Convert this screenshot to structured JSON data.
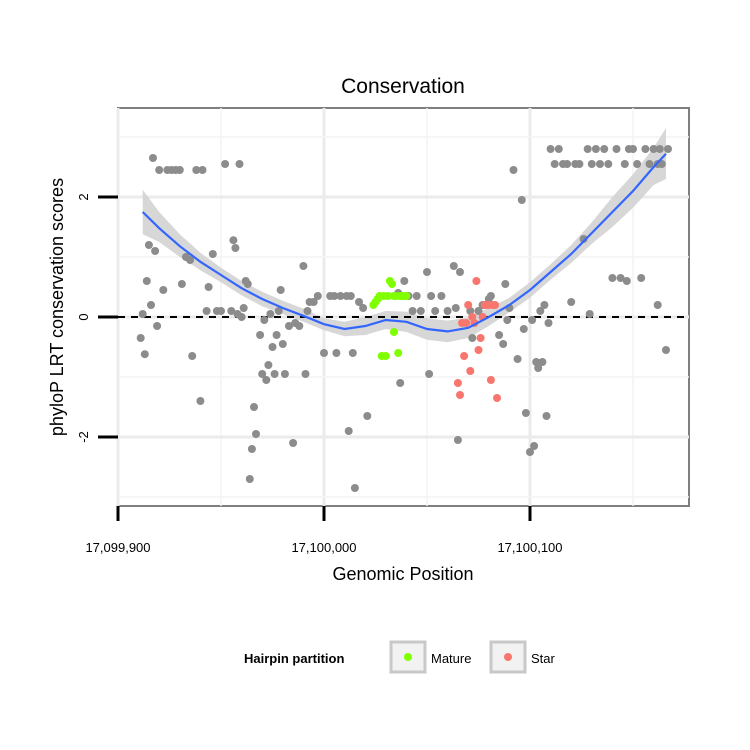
{
  "chart_data": {
    "type": "scatter",
    "title": "Conservation",
    "xlabel": "Genomic Position",
    "ylabel": "phyloP LRT conservation scores",
    "xlim": [
      17099890,
      17100170
    ],
    "ylim": [
      -3.2,
      3.5
    ],
    "x_ticks": [
      17099900,
      17100000,
      17100100
    ],
    "x_tick_labels": [
      "17,099,900",
      "17,100,000",
      "17,100,100"
    ],
    "y_ticks": [
      -2,
      0,
      2
    ],
    "y_tick_labels": [
      "-2",
      "0",
      "2"
    ],
    "grid": true,
    "reference_line": {
      "y": 0,
      "style": "dashed"
    },
    "legend": {
      "title": "Hairpin partition",
      "placement": "bottom",
      "entries": [
        {
          "label": "Mature",
          "color": "#7FFF00"
        },
        {
          "label": "Star",
          "color": "#F8766D"
        }
      ]
    },
    "colors": {
      "background_points": "#8C8C8C",
      "mature": "#7FFF00",
      "star": "#F8766D",
      "smooth_line": "#3366FF",
      "confidence_band": "#D3D3D3"
    },
    "series": [
      {
        "group": "background",
        "points": [
          [
            17099911,
            -0.35
          ],
          [
            17099912,
            0.05
          ],
          [
            17099913,
            -0.62
          ],
          [
            17099914,
            0.6
          ],
          [
            17099915,
            1.2
          ],
          [
            17099916,
            0.2
          ],
          [
            17099917,
            2.65
          ],
          [
            17099918,
            1.1
          ],
          [
            17099919,
            -0.15
          ],
          [
            17099920,
            2.45
          ],
          [
            17099922,
            0.45
          ],
          [
            17099924,
            2.45
          ],
          [
            17099926,
            2.45
          ],
          [
            17099928,
            2.45
          ],
          [
            17099930,
            2.45
          ],
          [
            17099931,
            0.55
          ],
          [
            17099933,
            1.0
          ],
          [
            17099935,
            0.95
          ],
          [
            17099936,
            -0.65
          ],
          [
            17099938,
            2.45
          ],
          [
            17099940,
            -1.4
          ],
          [
            17099941,
            2.45
          ],
          [
            17099943,
            0.1
          ],
          [
            17099944,
            0.5
          ],
          [
            17099946,
            1.05
          ],
          [
            17099948,
            0.1
          ],
          [
            17099950,
            0.1
          ],
          [
            17099952,
            2.55
          ],
          [
            17099955,
            0.1
          ],
          [
            17099956,
            1.28
          ],
          [
            17099957,
            1.15
          ],
          [
            17099958,
            0.05
          ],
          [
            17099959,
            2.55
          ],
          [
            17099960,
            0.0
          ],
          [
            17099961,
            0.15
          ],
          [
            17099962,
            0.6
          ],
          [
            17099963,
            0.55
          ],
          [
            17099964,
            -2.7
          ],
          [
            17099965,
            -2.2
          ],
          [
            17099966,
            -1.5
          ],
          [
            17099967,
            -1.95
          ],
          [
            17099969,
            -0.3
          ],
          [
            17099970,
            -0.95
          ],
          [
            17099971,
            -0.05
          ],
          [
            17099972,
            -1.05
          ],
          [
            17099973,
            -0.8
          ],
          [
            17099974,
            0.05
          ],
          [
            17099975,
            -0.5
          ],
          [
            17099976,
            -0.95
          ],
          [
            17099977,
            -0.3
          ],
          [
            17099978,
            0.1
          ],
          [
            17099979,
            0.45
          ],
          [
            17099980,
            -0.45
          ],
          [
            17099981,
            -0.95
          ],
          [
            17099983,
            -0.15
          ],
          [
            17099985,
            -2.1
          ],
          [
            17099986,
            -0.1
          ],
          [
            17099988,
            -0.15
          ],
          [
            17099990,
            0.85
          ],
          [
            17099991,
            -0.95
          ],
          [
            17099992,
            0.1
          ],
          [
            17099993,
            0.25
          ],
          [
            17099995,
            0.25
          ],
          [
            17099997,
            0.35
          ],
          [
            17100000,
            -0.6
          ],
          [
            17100003,
            0.35
          ],
          [
            17100005,
            0.35
          ],
          [
            17100006,
            -0.6
          ],
          [
            17100008,
            0.35
          ],
          [
            17100011,
            0.35
          ],
          [
            17100012,
            -1.9
          ],
          [
            17100013,
            0.35
          ],
          [
            17100014,
            -0.6
          ],
          [
            17100015,
            -2.85
          ],
          [
            17100017,
            0.25
          ],
          [
            17100019,
            0.15
          ],
          [
            17100021,
            -1.65
          ],
          [
            17100036,
            0.4
          ],
          [
            17100037,
            -1.1
          ],
          [
            17100039,
            0.6
          ],
          [
            17100041,
            0.35
          ],
          [
            17100043,
            0.1
          ],
          [
            17100045,
            0.35
          ],
          [
            17100047,
            0.1
          ],
          [
            17100050,
            0.75
          ],
          [
            17100051,
            -0.95
          ],
          [
            17100052,
            0.35
          ],
          [
            17100054,
            0.1
          ],
          [
            17100057,
            0.35
          ],
          [
            17100060,
            0.1
          ],
          [
            17100063,
            0.85
          ],
          [
            17100064,
            0.15
          ],
          [
            17100065,
            -2.05
          ],
          [
            17100066,
            0.75
          ],
          [
            17100071,
            0.1
          ],
          [
            17100072,
            -0.35
          ],
          [
            17100075,
            0.1
          ],
          [
            17100077,
            0.2
          ],
          [
            17100080,
            0.3
          ],
          [
            17100081,
            0.35
          ],
          [
            17100085,
            -0.3
          ],
          [
            17100087,
            -0.45
          ],
          [
            17100088,
            0.55
          ],
          [
            17100089,
            -0.05
          ],
          [
            17100090,
            0.15
          ],
          [
            17100092,
            2.45
          ],
          [
            17100094,
            -0.7
          ],
          [
            17100096,
            1.95
          ],
          [
            17100097,
            -0.2
          ],
          [
            17100098,
            -1.6
          ],
          [
            17100100,
            -2.25
          ],
          [
            17100101,
            -0.05
          ],
          [
            17100102,
            -2.15
          ],
          [
            17100103,
            -0.75
          ],
          [
            17100104,
            -0.85
          ],
          [
            17100105,
            0.1
          ],
          [
            17100106,
            -0.75
          ],
          [
            17100107,
            0.2
          ],
          [
            17100108,
            -1.65
          ],
          [
            17100109,
            -0.1
          ],
          [
            17100110,
            2.8
          ],
          [
            17100112,
            2.55
          ],
          [
            17100114,
            2.8
          ],
          [
            17100116,
            2.55
          ],
          [
            17100118,
            2.55
          ],
          [
            17100120,
            0.25
          ],
          [
            17100122,
            2.55
          ],
          [
            17100124,
            2.55
          ],
          [
            17100126,
            1.3
          ],
          [
            17100128,
            2.8
          ],
          [
            17100129,
            0.05
          ],
          [
            17100130,
            2.55
          ],
          [
            17100132,
            2.8
          ],
          [
            17100134,
            2.55
          ],
          [
            17100136,
            2.8
          ],
          [
            17100138,
            2.55
          ],
          [
            17100140,
            0.65
          ],
          [
            17100142,
            2.8
          ],
          [
            17100144,
            0.65
          ],
          [
            17100146,
            2.55
          ],
          [
            17100147,
            0.6
          ],
          [
            17100148,
            2.8
          ],
          [
            17100150,
            2.8
          ],
          [
            17100152,
            2.55
          ],
          [
            17100154,
            0.65
          ],
          [
            17100156,
            2.8
          ],
          [
            17100158,
            2.55
          ],
          [
            17100160,
            2.8
          ],
          [
            17100162,
            0.2
          ],
          [
            17100163,
            2.8
          ],
          [
            17100164,
            2.55
          ],
          [
            17100166,
            -0.55
          ],
          [
            17100162,
            2.55
          ],
          [
            17100167,
            2.8
          ]
        ]
      },
      {
        "group": "Mature",
        "points": [
          [
            17100024,
            0.2
          ],
          [
            17100025,
            0.25
          ],
          [
            17100026,
            0.3
          ],
          [
            17100027,
            0.35
          ],
          [
            17100028,
            -0.65
          ],
          [
            17100029,
            0.35
          ],
          [
            17100030,
            -0.65
          ],
          [
            17100031,
            0.35
          ],
          [
            17100032,
            0.6
          ],
          [
            17100033,
            0.55
          ],
          [
            17100034,
            -0.25
          ],
          [
            17100034,
            0.35
          ],
          [
            17100035,
            0.35
          ],
          [
            17100036,
            -0.6
          ],
          [
            17100037,
            0.35
          ],
          [
            17100038,
            0.35
          ],
          [
            17100039,
            0.35
          ],
          [
            17100040,
            0.35
          ]
        ]
      },
      {
        "group": "Star",
        "points": [
          [
            17100065,
            -1.1
          ],
          [
            17100066,
            -1.3
          ],
          [
            17100067,
            -0.1
          ],
          [
            17100068,
            -0.65
          ],
          [
            17100069,
            -0.1
          ],
          [
            17100070,
            0.2
          ],
          [
            17100071,
            -0.9
          ],
          [
            17100072,
            0.0
          ],
          [
            17100073,
            -0.1
          ],
          [
            17100074,
            0.6
          ],
          [
            17100075,
            -0.55
          ],
          [
            17100076,
            -0.35
          ],
          [
            17100077,
            0.0
          ],
          [
            17100078,
            0.2
          ],
          [
            17100079,
            0.2
          ],
          [
            17100080,
            0.2
          ],
          [
            17100081,
            -1.05
          ],
          [
            17100082,
            0.2
          ],
          [
            17100083,
            0.2
          ],
          [
            17100084,
            -1.35
          ]
        ]
      }
    ],
    "smooth": {
      "x": [
        17099912,
        17099920,
        17099930,
        17099940,
        17099950,
        17099960,
        17099970,
        17099980,
        17099990,
        17100000,
        17100010,
        17100020,
        17100030,
        17100040,
        17100050,
        17100060,
        17100070,
        17100080,
        17100090,
        17100100,
        17100110,
        17100120,
        17100130,
        17100140,
        17100150,
        17100160,
        17100166
      ],
      "y": [
        1.75,
        1.48,
        1.18,
        0.92,
        0.7,
        0.48,
        0.3,
        0.15,
        0.02,
        -0.12,
        -0.2,
        -0.15,
        -0.05,
        -0.08,
        -0.2,
        -0.24,
        -0.18,
        0.0,
        0.2,
        0.45,
        0.75,
        1.05,
        1.4,
        1.75,
        2.1,
        2.5,
        2.72
      ],
      "lo": [
        1.38,
        1.25,
        1.0,
        0.78,
        0.58,
        0.36,
        0.18,
        0.05,
        -0.08,
        -0.22,
        -0.32,
        -0.3,
        -0.2,
        -0.25,
        -0.38,
        -0.42,
        -0.35,
        -0.15,
        0.08,
        0.32,
        0.62,
        0.9,
        1.22,
        1.5,
        1.82,
        2.2,
        2.3
      ],
      "hi": [
        2.12,
        1.75,
        1.38,
        1.07,
        0.82,
        0.6,
        0.42,
        0.27,
        0.14,
        -0.02,
        -0.08,
        0.0,
        0.1,
        0.09,
        -0.02,
        -0.06,
        -0.01,
        0.15,
        0.32,
        0.58,
        0.88,
        1.2,
        1.58,
        2.0,
        2.38,
        2.82,
        3.15
      ]
    }
  }
}
